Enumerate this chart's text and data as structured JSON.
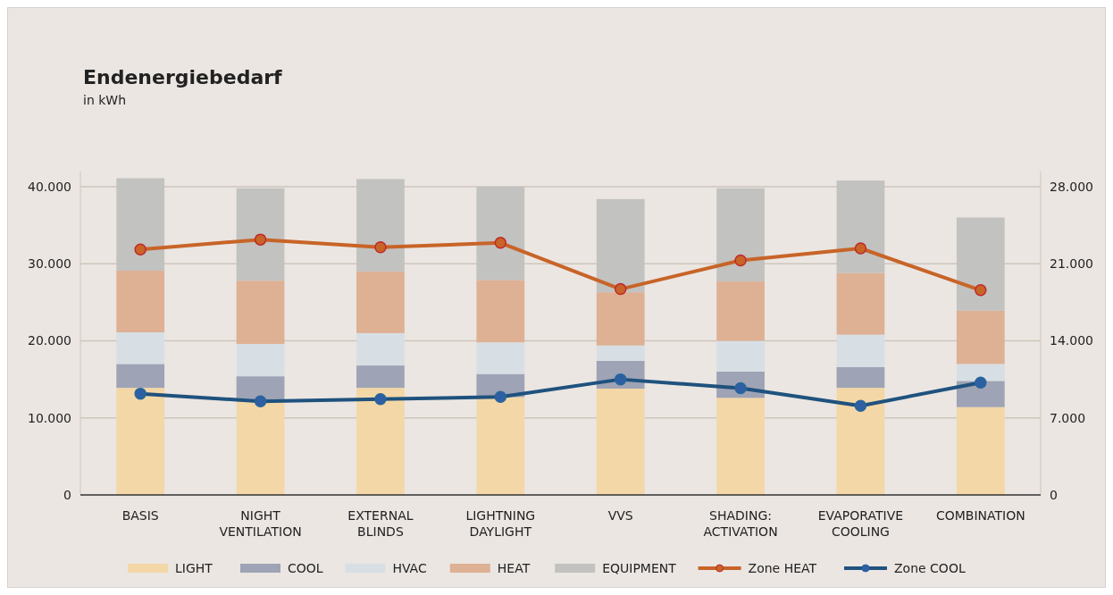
{
  "chart_data": {
    "type": "bar",
    "title": "Endenergiebedarf",
    "subtitle": "in kWh",
    "categories": [
      "BASIS",
      "NIGHT VENTILATION",
      "EXTERNAL BLINDS",
      "LIGHTNING DAYLIGHT",
      "VVS",
      "SHADING: ACTIVATION",
      "EVAPORATIVE COOLING",
      "COMBINATION"
    ],
    "stacked": true,
    "series": [
      {
        "name": "LIGHT",
        "color": "#f3d7a6",
        "values": [
          13900,
          12100,
          13900,
          12700,
          13800,
          12600,
          13900,
          11400
        ]
      },
      {
        "name": "COOL",
        "color": "#9ea3b5",
        "values": [
          3100,
          3300,
          2900,
          3000,
          3600,
          3400,
          2700,
          3400
        ]
      },
      {
        "name": "HVAC",
        "color": "#d7dfe5",
        "values": [
          4100,
          4200,
          4200,
          4100,
          2000,
          4000,
          4200,
          2200
        ]
      },
      {
        "name": "HEAT",
        "color": "#deb094",
        "values": [
          8000,
          8200,
          8000,
          8100,
          6900,
          7700,
          8000,
          6900
        ]
      },
      {
        "name": "EQUIPMENT",
        "color": "#c2c2c0",
        "values": [
          12000,
          12000,
          12000,
          12100,
          12100,
          12100,
          12000,
          12100
        ]
      },
      {
        "name": "Zone HEAT",
        "type": "line",
        "axis": "y2",
        "color": "#c86428",
        "values": [
          22300,
          23200,
          22500,
          22900,
          18700,
          21300,
          22400,
          18600
        ]
      },
      {
        "name": "Zone COOL",
        "type": "line",
        "axis": "y2",
        "color": "#1f527e",
        "values": [
          9200,
          8500,
          8700,
          8900,
          10500,
          9700,
          8100,
          10200
        ]
      }
    ],
    "ylim": [
      0,
      42000
    ],
    "yticks": [
      {
        "value": 0,
        "label": "0"
      },
      {
        "value": 10000,
        "label": "10.000"
      },
      {
        "value": 20000,
        "label": "20.000"
      },
      {
        "value": 30000,
        "label": "30.000"
      },
      {
        "value": 40000,
        "label": "40.000"
      }
    ],
    "y2lim": [
      0,
      29400
    ],
    "y2ticks": [
      {
        "value": 0,
        "label": "0"
      },
      {
        "value": 7000,
        "label": "7.000"
      },
      {
        "value": 14000,
        "label": "14.000"
      },
      {
        "value": 21000,
        "label": "21.000"
      },
      {
        "value": 28000,
        "label": "28.000"
      }
    ],
    "grid": "y",
    "legend": "bottom",
    "marker": "circle"
  }
}
